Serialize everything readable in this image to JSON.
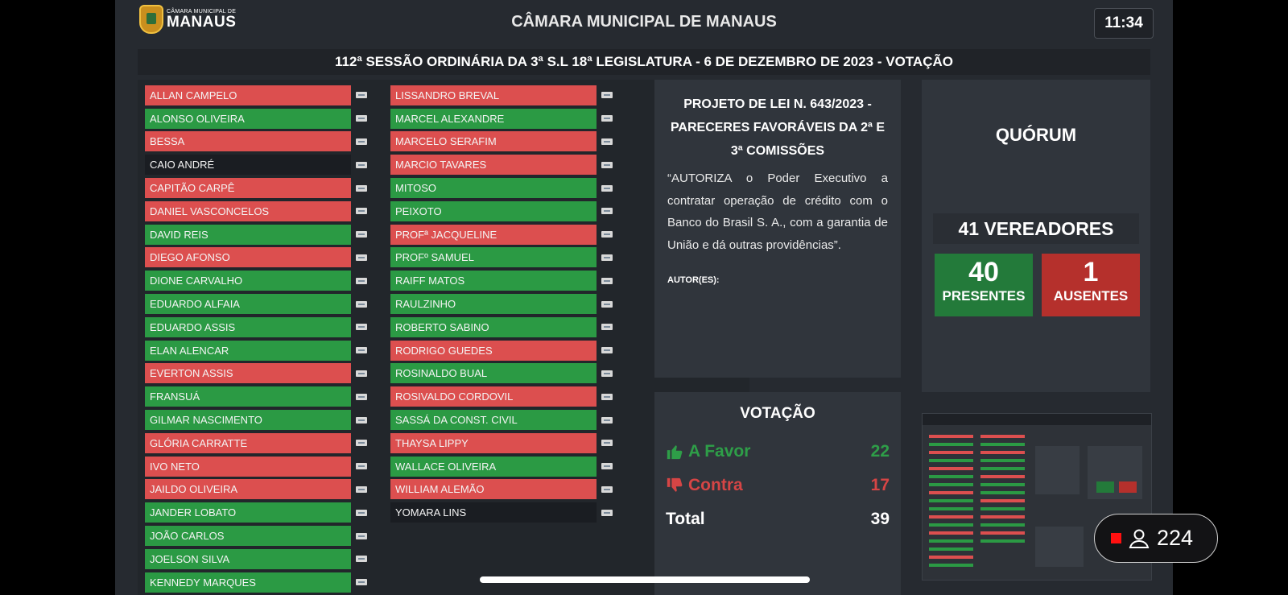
{
  "header": {
    "logo_small": "CÂMARA MUNICIPAL DE",
    "logo_big": "MANAUS",
    "title": "CÂMARA MUNICIPAL DE MANAUS",
    "time": "11:34"
  },
  "session": "112ª SESSÃO ORDINÁRIA DA 3ª S.L 18ª LEGISLATURA - 6 DE DEZEMBRO DE 2023 - VOTAÇÃO",
  "council_left": [
    {
      "name": "ALLAN CAMPELO",
      "status": "red"
    },
    {
      "name": "ALONSO OLIVEIRA",
      "status": "green"
    },
    {
      "name": "BESSA",
      "status": "red"
    },
    {
      "name": "CAIO ANDRÉ",
      "status": "dark"
    },
    {
      "name": "CAPITÃO CARPÊ",
      "status": "red"
    },
    {
      "name": "DANIEL VASCONCELOS",
      "status": "red"
    },
    {
      "name": "DAVID REIS",
      "status": "green"
    },
    {
      "name": "DIEGO AFONSO",
      "status": "red"
    },
    {
      "name": "DIONE CARVALHO",
      "status": "green"
    },
    {
      "name": "EDUARDO ALFAIA",
      "status": "green"
    },
    {
      "name": "EDUARDO ASSIS",
      "status": "green"
    },
    {
      "name": "ELAN ALENCAR",
      "status": "green"
    },
    {
      "name": "EVERTON ASSIS",
      "status": "red"
    },
    {
      "name": "FRANSUÁ",
      "status": "green"
    },
    {
      "name": "GILMAR NASCIMENTO",
      "status": "green"
    },
    {
      "name": "GLÓRIA CARRATTE",
      "status": "red"
    },
    {
      "name": "IVO NETO",
      "status": "red"
    },
    {
      "name": "JAILDO OLIVEIRA",
      "status": "red"
    },
    {
      "name": "JANDER LOBATO",
      "status": "green"
    },
    {
      "name": "JOÃO CARLOS",
      "status": "green"
    },
    {
      "name": "JOELSON SILVA",
      "status": "green"
    },
    {
      "name": "KENNEDY MARQUES",
      "status": "green"
    }
  ],
  "council_right": [
    {
      "name": "LISSANDRO BREVAL",
      "status": "red"
    },
    {
      "name": "MARCEL ALEXANDRE",
      "status": "green"
    },
    {
      "name": "MARCELO SERAFIM",
      "status": "red"
    },
    {
      "name": "MARCIO TAVARES",
      "status": "red"
    },
    {
      "name": "MITOSO",
      "status": "green"
    },
    {
      "name": "PEIXOTO",
      "status": "green"
    },
    {
      "name": "PROFª JACQUELINE",
      "status": "red"
    },
    {
      "name": "PROFº SAMUEL",
      "status": "green"
    },
    {
      "name": "RAIFF MATOS",
      "status": "green"
    },
    {
      "name": "RAULZINHO",
      "status": "green"
    },
    {
      "name": "ROBERTO SABINO",
      "status": "green"
    },
    {
      "name": "RODRIGO GUEDES",
      "status": "red"
    },
    {
      "name": "ROSINALDO BUAL",
      "status": "green"
    },
    {
      "name": "ROSIVALDO CORDOVIL",
      "status": "red"
    },
    {
      "name": "SASSÁ DA CONST. CIVIL",
      "status": "green"
    },
    {
      "name": "THAYSA LIPPY",
      "status": "red"
    },
    {
      "name": "WALLACE OLIVEIRA",
      "status": "green"
    },
    {
      "name": "WILLIAM ALEMÃO",
      "status": "red"
    },
    {
      "name": "YOMARA LINS",
      "status": "dark"
    }
  ],
  "project": {
    "title": "PROJETO DE LEI N. 643/2023 - PARECERES FAVORÁVEIS DA 2ª E 3ª COMISSÕES",
    "text": "“AUTORIZA o Poder Executivo a contratar operação de crédito com o Banco do Brasil S. A., com a garantia de União e dá outras providências”.",
    "author_label": "AUTOR(ES):"
  },
  "quorum": {
    "title": "QUÓRUM",
    "total_label": "41 VEREADORES",
    "present_count": "40",
    "present_label": "PRESENTES",
    "absent_count": "1",
    "absent_label": "AUSENTES"
  },
  "votacao": {
    "title": "VOTAÇÃO",
    "favor_label": "A Favor",
    "favor_count": "22",
    "contra_label": "Contra",
    "contra_count": "17",
    "total_label": "Total",
    "total_count": "39"
  },
  "live": {
    "viewers": "224"
  },
  "colors": {
    "green": "#2b9a44",
    "red": "#dc4f4f",
    "dark": "#1a1d22",
    "background": "#262a30"
  }
}
